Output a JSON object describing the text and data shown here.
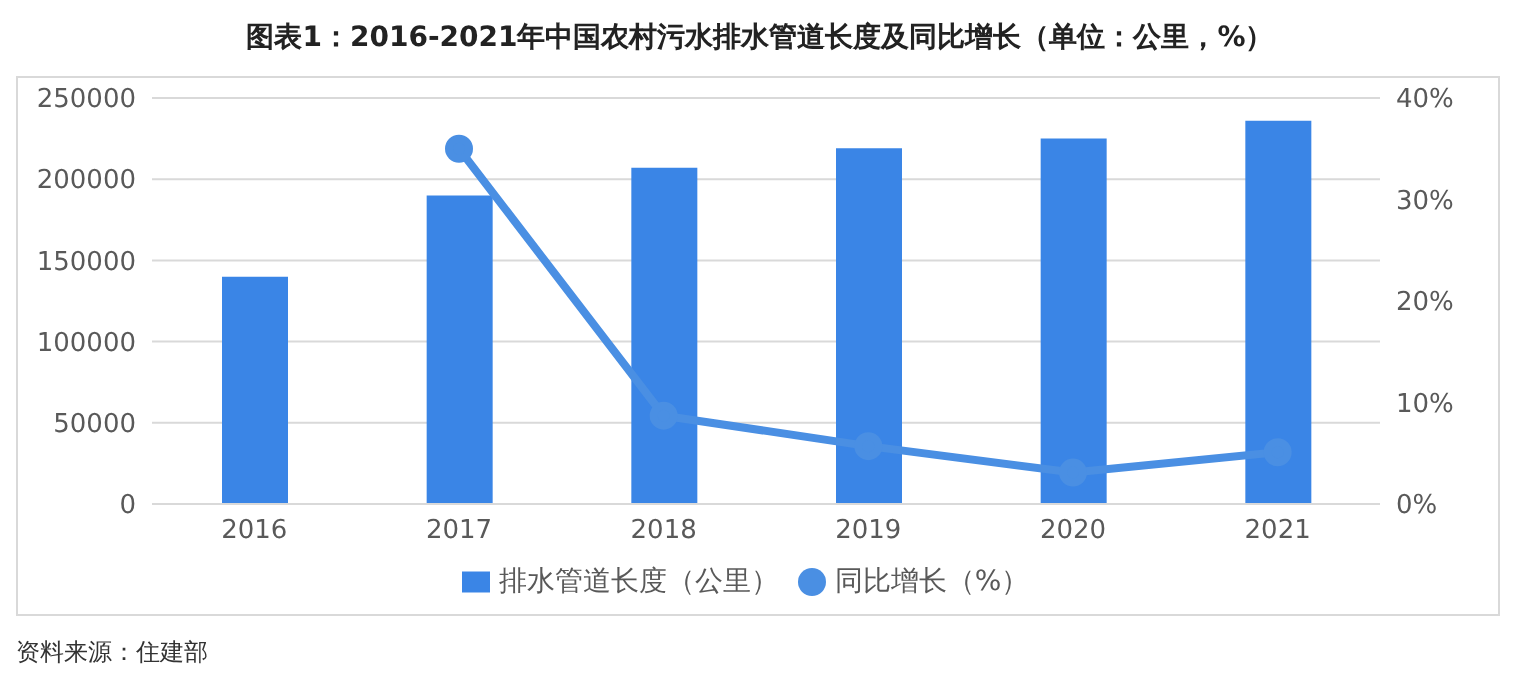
{
  "chart_data": {
    "type": "bar",
    "title": "图表1：2016-2021年中国农村污水排水管道长度及同比增长（单位：公里，%）",
    "categories": [
      "2016",
      "2017",
      "2018",
      "2019",
      "2020",
      "2021"
    ],
    "series": [
      {
        "name": "排水管道长度（公里）",
        "color": "#3a85e6",
        "values": [
          140000,
          190000,
          207000,
          219000,
          225000,
          236000
        ]
      },
      {
        "name": "同比增长（%）",
        "type": "line",
        "axis": "y2",
        "color": "#4a8fe3",
        "values": [
          null,
          35,
          8.7,
          5.7,
          3.1,
          5.1
        ]
      }
    ],
    "ylim": [
      0,
      250000
    ],
    "yticks": [
      0,
      50000,
      100000,
      150000,
      200000,
      250000
    ],
    "y2lim": [
      0,
      40
    ],
    "y2ticks": [
      {
        "value": 0,
        "label": "0%"
      },
      {
        "value": 10,
        "label": "10%"
      },
      {
        "value": 20,
        "label": "20%"
      },
      {
        "value": 30,
        "label": "30%"
      },
      {
        "value": 40,
        "label": "40%"
      }
    ],
    "grid": "y",
    "legend": "bottom",
    "marker": "circle",
    "line_style": "solid",
    "annotations": [
      "资料来源：住建部"
    ]
  }
}
